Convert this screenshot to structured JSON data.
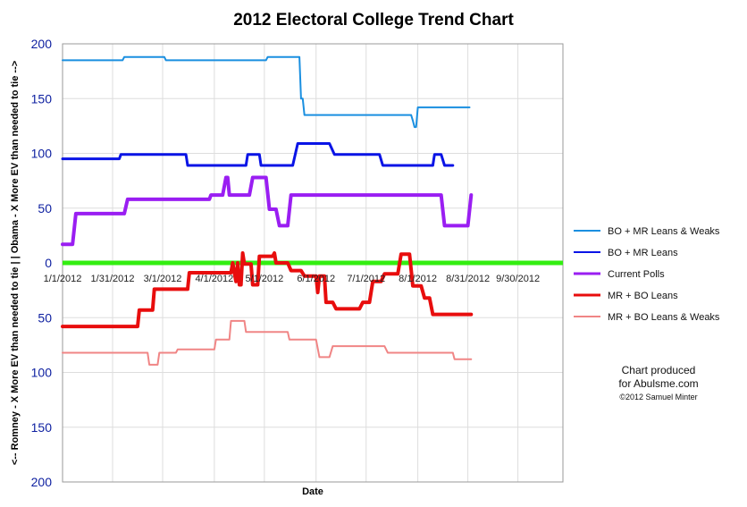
{
  "chart_data": {
    "type": "line",
    "title": "2012 Electoral College Trend Chart",
    "xlabel": "Date",
    "ylabel": "<-- Romney - X More EV than needed to tie | | Obama - X More EV than needed to tie -->",
    "x_axis": {
      "range_days": [
        0,
        300
      ],
      "tick_labels": [
        "1/1/2012",
        "1/31/2012",
        "3/1/2012",
        "4/1/2012",
        "5/1/2012",
        "6/1/2012",
        "7/1/2012",
        "8/1/2012",
        "8/31/2012",
        "9/30/2012"
      ],
      "tick_days": [
        0,
        30,
        60,
        91,
        121,
        152,
        182,
        213,
        243,
        273
      ]
    },
    "y_axis": {
      "range": [
        -200,
        200
      ],
      "tick_values": [
        200,
        150,
        100,
        50,
        0,
        -50,
        -100,
        -150,
        -200
      ],
      "tick_labels": [
        "200",
        "150",
        "100",
        "50",
        "0",
        "50",
        "100",
        "150",
        "200"
      ]
    },
    "zero_line_color": "#33ee11",
    "series": [
      {
        "name": "BO + MR Leans & Weaks",
        "color": "#1a8fe0",
        "width": 2,
        "points": [
          [
            0,
            185
          ],
          [
            36,
            185
          ],
          [
            37,
            188
          ],
          [
            61,
            188
          ],
          [
            62,
            185
          ],
          [
            122,
            185
          ],
          [
            123,
            188
          ],
          [
            142,
            188
          ],
          [
            143,
            150
          ],
          [
            144,
            150
          ],
          [
            145,
            135
          ],
          [
            209,
            135
          ],
          [
            210,
            130
          ],
          [
            211,
            124
          ],
          [
            212,
            124
          ],
          [
            213,
            142
          ],
          [
            244,
            142
          ]
        ]
      },
      {
        "name": "BO + MR Leans",
        "color": "#0a14e6",
        "width": 3,
        "points": [
          [
            0,
            95
          ],
          [
            34,
            95
          ],
          [
            35,
            99
          ],
          [
            74,
            99
          ],
          [
            75,
            89
          ],
          [
            110,
            89
          ],
          [
            111,
            99
          ],
          [
            118,
            99
          ],
          [
            119,
            89
          ],
          [
            138,
            89
          ],
          [
            141,
            109
          ],
          [
            160,
            109
          ],
          [
            163,
            99
          ],
          [
            190,
            99
          ],
          [
            192,
            89
          ],
          [
            222,
            89
          ],
          [
            223,
            99
          ],
          [
            227,
            99
          ],
          [
            229,
            89
          ],
          [
            234,
            89
          ]
        ]
      },
      {
        "name": "Current Polls",
        "color": "#9a1ef2",
        "width": 4,
        "points": [
          [
            0,
            17
          ],
          [
            6,
            17
          ],
          [
            8,
            45
          ],
          [
            37,
            45
          ],
          [
            39,
            58
          ],
          [
            88,
            58
          ],
          [
            89,
            62
          ],
          [
            96,
            62
          ],
          [
            98,
            78
          ],
          [
            99,
            78
          ],
          [
            100,
            62
          ],
          [
            112,
            62
          ],
          [
            114,
            78
          ],
          [
            122,
            78
          ],
          [
            124,
            49
          ],
          [
            128,
            49
          ],
          [
            130,
            34
          ],
          [
            135,
            34
          ],
          [
            137,
            62
          ],
          [
            227,
            62
          ],
          [
            229,
            34
          ],
          [
            243,
            34
          ],
          [
            245,
            62
          ]
        ]
      },
      {
        "name": "MR + BO Leans",
        "color": "#e80d0d",
        "width": 4,
        "points": [
          [
            0,
            -58
          ],
          [
            45,
            -58
          ],
          [
            46,
            -43
          ],
          [
            54,
            -43
          ],
          [
            55,
            -24
          ],
          [
            75,
            -24
          ],
          [
            76,
            -9
          ],
          [
            101,
            -9
          ],
          [
            102,
            0
          ],
          [
            104,
            -17
          ],
          [
            105,
            0
          ],
          [
            106,
            -20
          ],
          [
            107,
            -20
          ],
          [
            108,
            9
          ],
          [
            109,
            -1
          ],
          [
            113,
            -1
          ],
          [
            114,
            -20
          ],
          [
            117,
            -20
          ],
          [
            118,
            6
          ],
          [
            126,
            6
          ],
          [
            127,
            9
          ],
          [
            128,
            0
          ],
          [
            135,
            0
          ],
          [
            137,
            -7
          ],
          [
            143,
            -7
          ],
          [
            145,
            -12
          ],
          [
            152,
            -12
          ],
          [
            153,
            -27
          ],
          [
            154,
            -12
          ],
          [
            157,
            -12
          ],
          [
            158,
            -36
          ],
          [
            162,
            -36
          ],
          [
            164,
            -42
          ],
          [
            178,
            -42
          ],
          [
            180,
            -36
          ],
          [
            184,
            -36
          ],
          [
            186,
            -17
          ],
          [
            191,
            -17
          ],
          [
            193,
            -10
          ],
          [
            201,
            -10
          ],
          [
            203,
            8
          ],
          [
            208,
            8
          ],
          [
            210,
            -21
          ],
          [
            215,
            -21
          ],
          [
            217,
            -32
          ],
          [
            220,
            -32
          ],
          [
            222,
            -47
          ],
          [
            245,
            -47
          ]
        ]
      },
      {
        "name": "MR + BO Leans & Weaks",
        "color": "#f08585",
        "width": 2,
        "points": [
          [
            0,
            -82
          ],
          [
            51,
            -82
          ],
          [
            52,
            -93
          ],
          [
            57,
            -93
          ],
          [
            58,
            -82
          ],
          [
            68,
            -82
          ],
          [
            69,
            -79
          ],
          [
            91,
            -79
          ],
          [
            92,
            -70
          ],
          [
            100,
            -70
          ],
          [
            101,
            -53
          ],
          [
            109,
            -53
          ],
          [
            110,
            -63
          ],
          [
            135,
            -63
          ],
          [
            136,
            -70
          ],
          [
            152,
            -70
          ],
          [
            154,
            -86
          ],
          [
            160,
            -86
          ],
          [
            162,
            -76
          ],
          [
            193,
            -76
          ],
          [
            195,
            -82
          ],
          [
            234,
            -82
          ],
          [
            235,
            -88
          ],
          [
            245,
            -88
          ]
        ]
      }
    ],
    "legend_position": "right",
    "annotations": [
      "Chart produced",
      "for Abulsme.com",
      "©2012 Samuel Minter"
    ]
  }
}
